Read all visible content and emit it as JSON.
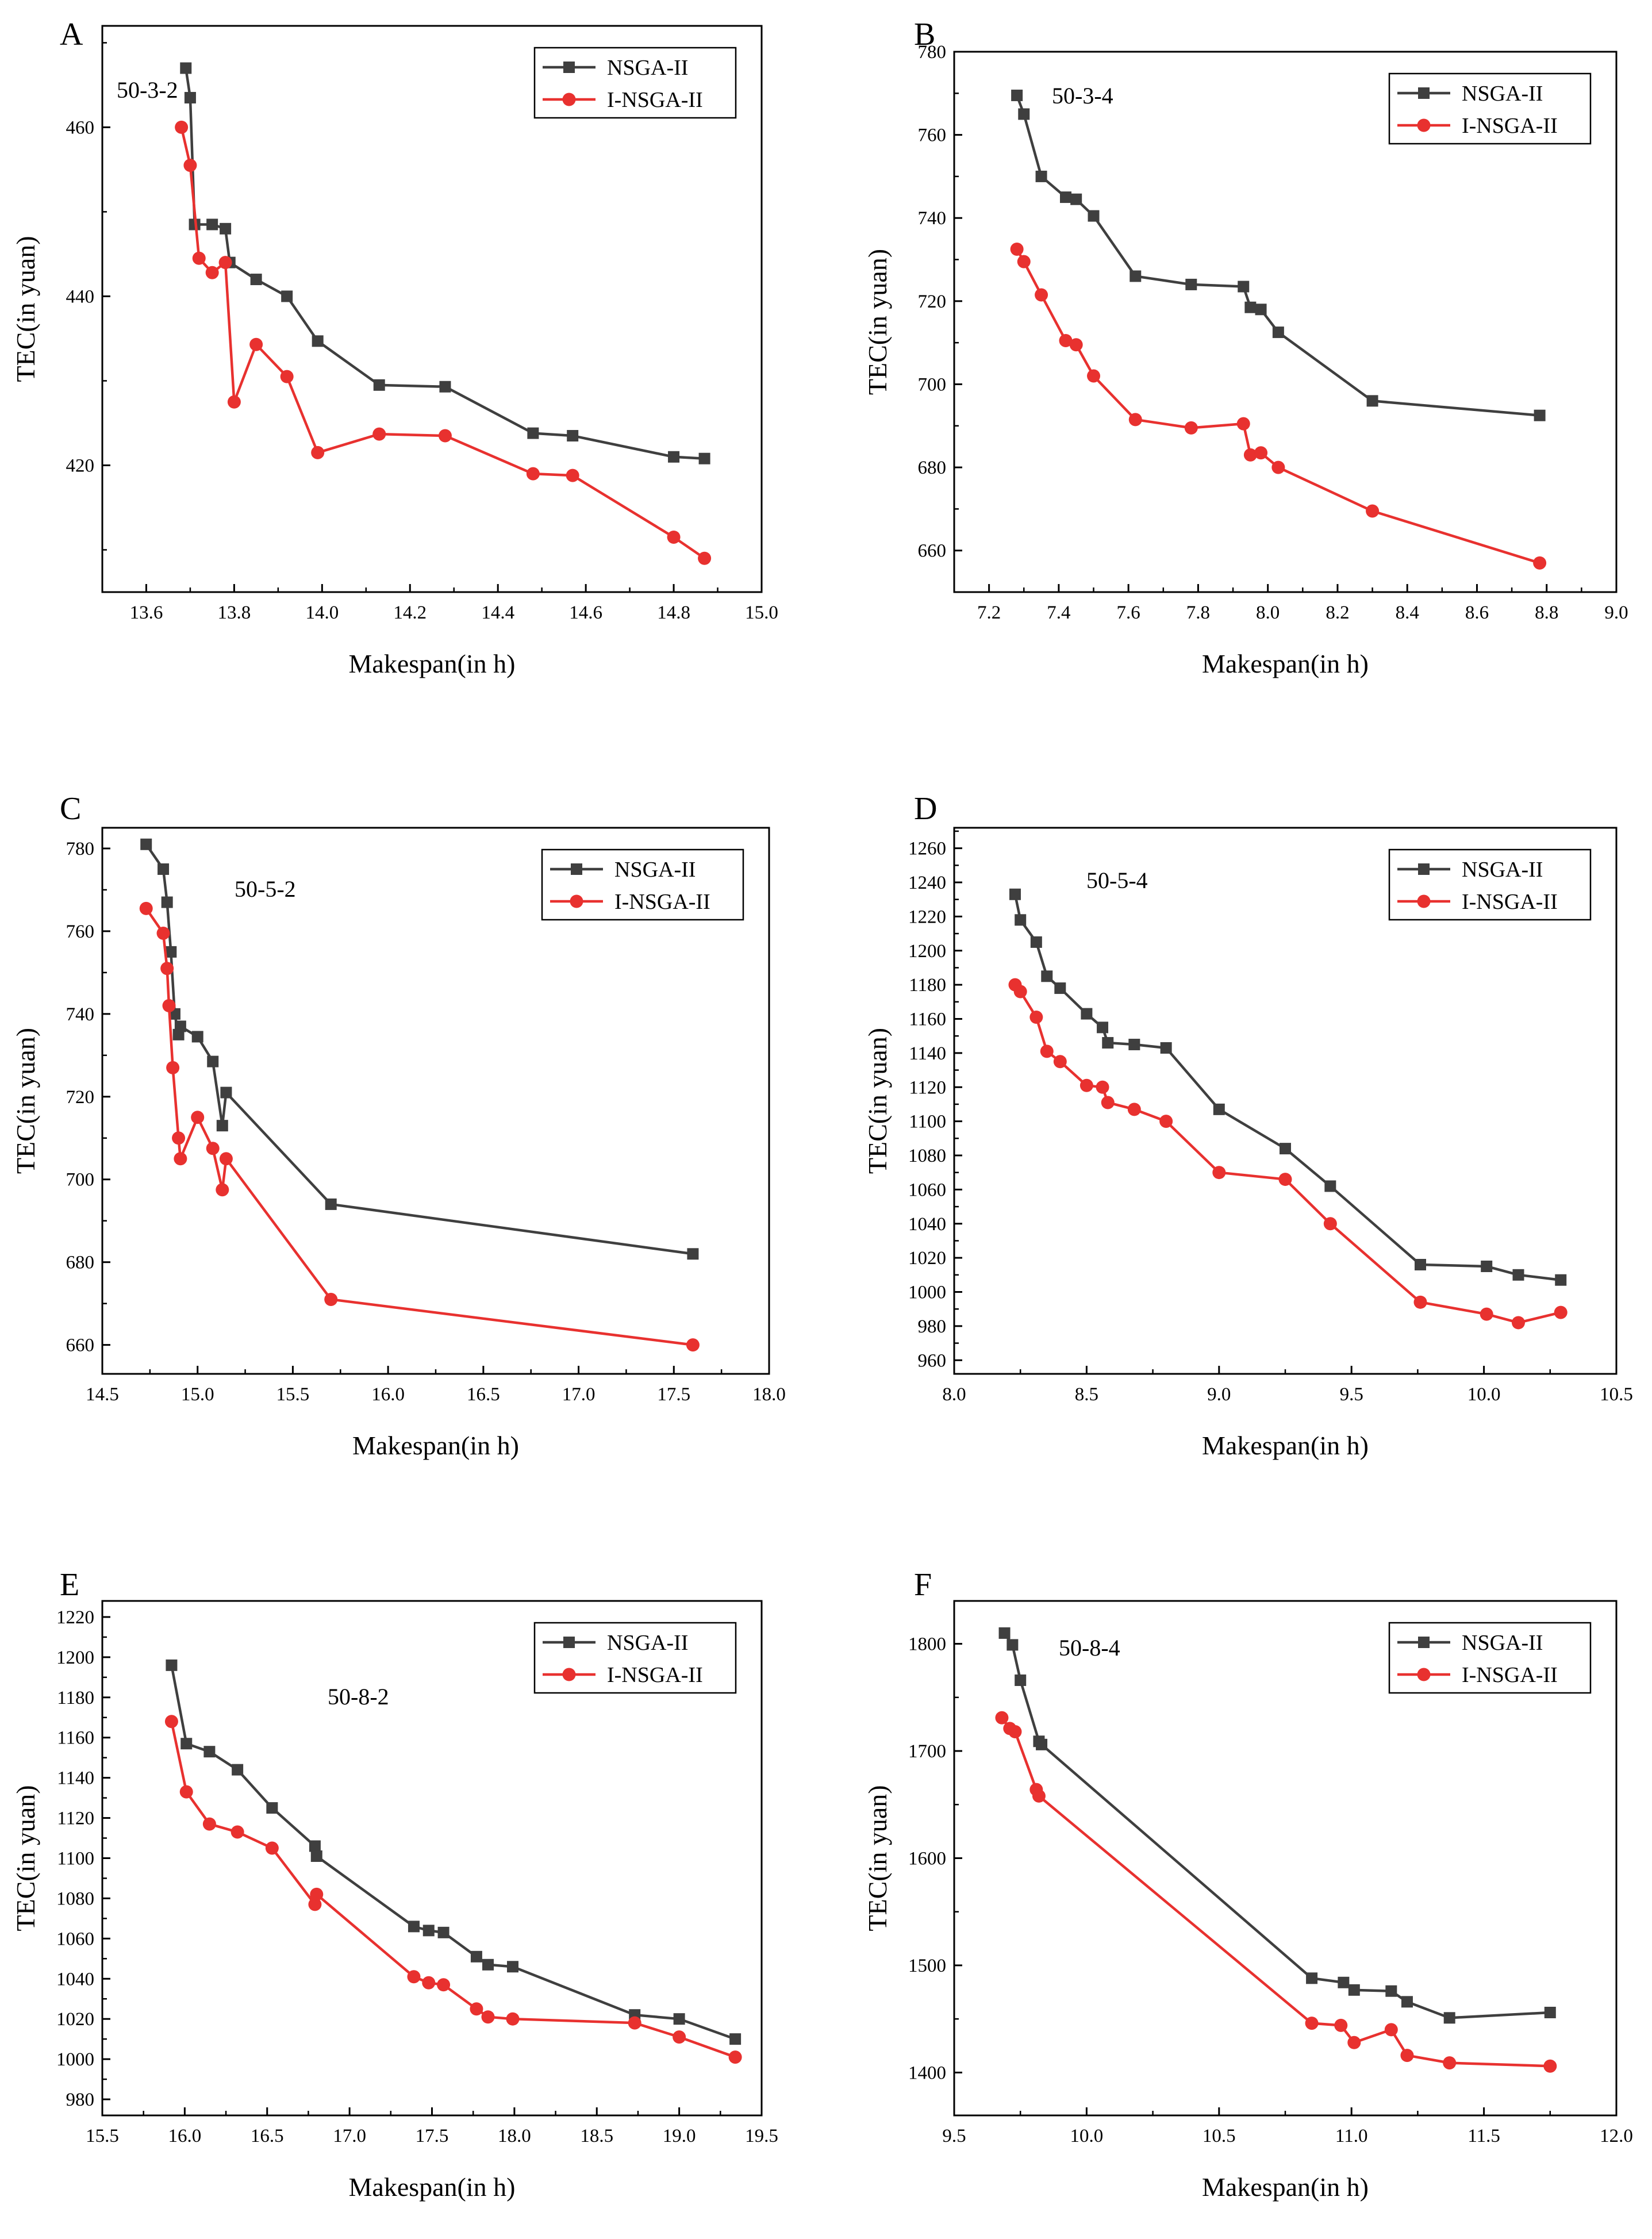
{
  "colors": {
    "nsga": "#3f3f3f",
    "insga": "#e8312f",
    "axis": "#000000"
  },
  "chart_data": [
    {
      "panel_label": "A",
      "type": "line",
      "instance": "50-3-2",
      "xlabel": "Makespan(in h)",
      "ylabel": "TEC(in yuan)",
      "xlim": [
        13.5,
        15.0
      ],
      "ylim": [
        405,
        472
      ],
      "xticks": [
        13.6,
        13.8,
        14.0,
        14.2,
        14.4,
        14.6,
        14.8,
        15.0
      ],
      "yticks": [
        420,
        440,
        460
      ],
      "xtick_labels": [
        "13.6",
        "13.8",
        "14.0",
        "14.2",
        "14.4",
        "14.6",
        "14.8",
        "15.0"
      ],
      "ytick_labels": [
        "420",
        "440",
        "460"
      ],
      "legend_position": "top-right",
      "series": [
        {
          "name": "NSGA-II",
          "marker": "square",
          "x": [
            13.69,
            13.7,
            13.71,
            13.75,
            13.78,
            13.79,
            13.85,
            13.92,
            13.99,
            14.13,
            14.28,
            14.48,
            14.57,
            14.8,
            14.87
          ],
          "y": [
            467.0,
            463.5,
            448.5,
            448.5,
            448.0,
            444.0,
            442.0,
            440.0,
            434.7,
            429.5,
            429.3,
            423.8,
            423.5,
            421.0,
            420.8
          ]
        },
        {
          "name": "I-NSGA-II",
          "marker": "circle",
          "x": [
            13.68,
            13.7,
            13.72,
            13.75,
            13.78,
            13.8,
            13.85,
            13.92,
            13.99,
            14.13,
            14.28,
            14.48,
            14.57,
            14.8,
            14.87
          ],
          "y": [
            460.0,
            455.5,
            444.5,
            442.8,
            444.0,
            427.5,
            434.3,
            430.5,
            421.5,
            423.7,
            423.5,
            419.0,
            418.8,
            411.5,
            409.0
          ]
        }
      ]
    },
    {
      "panel_label": "B",
      "type": "line",
      "instance": "50-3-4",
      "xlabel": "Makespan(in h)",
      "ylabel": "TEC(in yuan)",
      "xlim": [
        7.1,
        9.0
      ],
      "ylim": [
        650,
        780
      ],
      "xticks": [
        7.2,
        7.4,
        7.6,
        7.8,
        8.0,
        8.2,
        8.4,
        8.6,
        8.8,
        9.0
      ],
      "yticks": [
        660,
        680,
        700,
        720,
        740,
        760,
        780
      ],
      "xtick_labels": [
        "7.2",
        "7.4",
        "7.6",
        "7.8",
        "8.0",
        "8.2",
        "8.4",
        "8.6",
        "8.8",
        "9.0"
      ],
      "ytick_labels": [
        "660",
        "680",
        "700",
        "720",
        "740",
        "760",
        "780"
      ],
      "legend_position": "top-right",
      "series": [
        {
          "name": "NSGA-II",
          "marker": "square",
          "x": [
            7.28,
            7.3,
            7.35,
            7.42,
            7.45,
            7.5,
            7.62,
            7.78,
            7.93,
            7.95,
            7.98,
            8.03,
            8.3,
            8.78
          ],
          "y": [
            769.5,
            765.0,
            750.0,
            745.0,
            744.5,
            740.5,
            726.0,
            724.0,
            723.5,
            718.5,
            718.0,
            712.5,
            696.0,
            692.5
          ]
        },
        {
          "name": "I-NSGA-II",
          "marker": "circle",
          "x": [
            7.28,
            7.3,
            7.35,
            7.42,
            7.45,
            7.5,
            7.62,
            7.78,
            7.93,
            7.95,
            7.98,
            8.03,
            8.3,
            8.78
          ],
          "y": [
            732.5,
            729.5,
            721.5,
            710.5,
            709.5,
            702.0,
            691.5,
            689.5,
            690.5,
            683.0,
            683.5,
            680.0,
            669.5,
            657.0
          ]
        }
      ]
    },
    {
      "panel_label": "C",
      "type": "line",
      "instance": "50-5-2",
      "xlabel": "Makespan(in h)",
      "ylabel": "TEC(in yuan)",
      "xlim": [
        14.5,
        18.0
      ],
      "ylim": [
        653,
        785
      ],
      "xticks": [
        14.5,
        15.0,
        15.5,
        16.0,
        16.5,
        17.0,
        17.5,
        18.0
      ],
      "yticks": [
        660,
        680,
        700,
        720,
        740,
        760,
        780
      ],
      "xtick_labels": [
        "14.5",
        "15.0",
        "15.5",
        "16.0",
        "16.5",
        "17.0",
        "17.5",
        "18.0"
      ],
      "ytick_labels": [
        "660",
        "680",
        "700",
        "720",
        "740",
        "760",
        "780"
      ],
      "legend_position": "top-right",
      "series": [
        {
          "name": "NSGA-II",
          "marker": "square",
          "x": [
            14.73,
            14.82,
            14.84,
            14.86,
            14.88,
            14.9,
            14.91,
            15.0,
            15.08,
            15.13,
            15.15,
            15.7,
            17.6
          ],
          "y": [
            781.0,
            775.0,
            767.0,
            755.0,
            740.0,
            735.0,
            737.0,
            734.5,
            728.5,
            713.0,
            721.0,
            694.0,
            682.0
          ]
        },
        {
          "name": "I-NSGA-II",
          "marker": "circle",
          "x": [
            14.73,
            14.82,
            14.84,
            14.85,
            14.87,
            14.9,
            14.91,
            15.0,
            15.08,
            15.13,
            15.15,
            15.7,
            17.6
          ],
          "y": [
            765.5,
            759.5,
            751.0,
            742.0,
            727.0,
            710.0,
            705.0,
            715.0,
            707.5,
            697.5,
            705.0,
            671.0,
            660.0
          ]
        }
      ]
    },
    {
      "panel_label": "D",
      "type": "line",
      "instance": "50-5-4",
      "xlabel": "Makespan(in h)",
      "ylabel": "TEC(in yuan)",
      "xlim": [
        8.0,
        10.5
      ],
      "ylim": [
        952,
        1272
      ],
      "xticks": [
        8.0,
        8.5,
        9.0,
        9.5,
        10.0,
        10.5
      ],
      "yticks": [
        960,
        980,
        1000,
        1020,
        1040,
        1060,
        1080,
        1100,
        1120,
        1140,
        1160,
        1180,
        1200,
        1220,
        1240,
        1260
      ],
      "xtick_labels": [
        "8.0",
        "8.5",
        "9.0",
        "9.5",
        "10.0",
        "10.5"
      ],
      "ytick_labels": [
        "960",
        "980",
        "1000",
        "1020",
        "1040",
        "1060",
        "1080",
        "1100",
        "1120",
        "1140",
        "1160",
        "1180",
        "1200",
        "1220",
        "1240",
        "1260"
      ],
      "legend_position": "top-right",
      "series": [
        {
          "name": "NSGA-II",
          "marker": "square",
          "x": [
            8.23,
            8.25,
            8.31,
            8.35,
            8.4,
            8.5,
            8.56,
            8.58,
            8.68,
            8.8,
            9.0,
            9.25,
            9.42,
            9.76,
            10.01,
            10.13,
            10.29
          ],
          "y": [
            1233,
            1218,
            1205,
            1185,
            1178,
            1163,
            1155,
            1146,
            1145,
            1143,
            1107,
            1084,
            1062,
            1016,
            1015,
            1010,
            1007
          ]
        },
        {
          "name": "I-NSGA-II",
          "marker": "circle",
          "x": [
            8.23,
            8.25,
            8.31,
            8.35,
            8.4,
            8.5,
            8.56,
            8.58,
            8.68,
            8.8,
            9.0,
            9.25,
            9.42,
            9.76,
            10.01,
            10.13,
            10.29
          ],
          "y": [
            1180,
            1176,
            1161,
            1141,
            1135,
            1121,
            1120,
            1111,
            1107,
            1100,
            1070,
            1066,
            1040,
            994,
            987,
            982,
            988
          ]
        }
      ]
    },
    {
      "panel_label": "E",
      "type": "line",
      "instance": "50-8-2",
      "xlabel": "Makespan(in h)",
      "ylabel": "TEC(in yuan)",
      "xlim": [
        15.5,
        19.5
      ],
      "ylim": [
        972,
        1228
      ],
      "xticks": [
        15.5,
        16.0,
        16.5,
        17.0,
        17.5,
        18.0,
        18.5,
        19.0,
        19.5
      ],
      "yticks": [
        980,
        1000,
        1020,
        1040,
        1060,
        1080,
        1100,
        1120,
        1140,
        1160,
        1180,
        1200,
        1220
      ],
      "xtick_labels": [
        "15.5",
        "16.0",
        "16.5",
        "17.0",
        "17.5",
        "18.0",
        "18.5",
        "19.0",
        "19.5"
      ],
      "ytick_labels": [
        "980",
        "1000",
        "1020",
        "1040",
        "1060",
        "1080",
        "1100",
        "1120",
        "1140",
        "1160",
        "1180",
        "1200",
        "1220"
      ],
      "legend_position": "top-right",
      "series": [
        {
          "name": "NSGA-II",
          "marker": "square",
          "x": [
            15.92,
            16.01,
            16.15,
            16.32,
            16.53,
            16.79,
            16.8,
            17.39,
            17.48,
            17.57,
            17.77,
            17.84,
            17.99,
            18.73,
            19.0,
            19.34
          ],
          "y": [
            1196,
            1157,
            1153,
            1144,
            1125,
            1106,
            1101,
            1066,
            1064,
            1063,
            1051,
            1047,
            1046,
            1022,
            1020,
            1010
          ]
        },
        {
          "name": "I-NSGA-II",
          "marker": "circle",
          "x": [
            15.92,
            16.01,
            16.15,
            16.32,
            16.53,
            16.79,
            16.8,
            17.39,
            17.48,
            17.57,
            17.77,
            17.84,
            17.99,
            18.73,
            19.0,
            19.34
          ],
          "y": [
            1168,
            1133,
            1117,
            1113,
            1105,
            1077,
            1082,
            1041,
            1038,
            1037,
            1025,
            1021,
            1020,
            1018,
            1011,
            1001
          ]
        }
      ]
    },
    {
      "panel_label": "F",
      "type": "line",
      "instance": "50-8-4",
      "xlabel": "Makespan(in h)",
      "ylabel": "TEC(in yuan)",
      "xlim": [
        9.5,
        12.0
      ],
      "ylim": [
        1360,
        1840
      ],
      "xticks": [
        9.5,
        10.0,
        10.5,
        11.0,
        11.5,
        12.0
      ],
      "yticks": [
        1400,
        1500,
        1600,
        1700,
        1800
      ],
      "xtick_labels": [
        "9.5",
        "10.0",
        "10.5",
        "11.0",
        "11.5",
        "12.0"
      ],
      "ytick_labels": [
        "1400",
        "1500",
        "1600",
        "1700",
        "1800"
      ],
      "legend_position": "top-right",
      "series": [
        {
          "name": "NSGA-II",
          "marker": "square",
          "x": [
            9.69,
            9.72,
            9.75,
            9.82,
            9.83,
            10.85,
            10.97,
            11.01,
            11.15,
            11.21,
            11.37,
            11.75
          ],
          "y": [
            1810,
            1799,
            1766,
            1709,
            1706,
            1488,
            1484,
            1477,
            1476,
            1466,
            1451,
            1456
          ]
        },
        {
          "name": "I-NSGA-II",
          "marker": "circle",
          "x": [
            9.68,
            9.71,
            9.73,
            9.81,
            9.82,
            10.85,
            10.96,
            11.01,
            11.15,
            11.21,
            11.37,
            11.75
          ],
          "y": [
            1731,
            1721,
            1718,
            1664,
            1658,
            1446,
            1444,
            1428,
            1440,
            1416,
            1409,
            1406
          ]
        }
      ]
    }
  ]
}
